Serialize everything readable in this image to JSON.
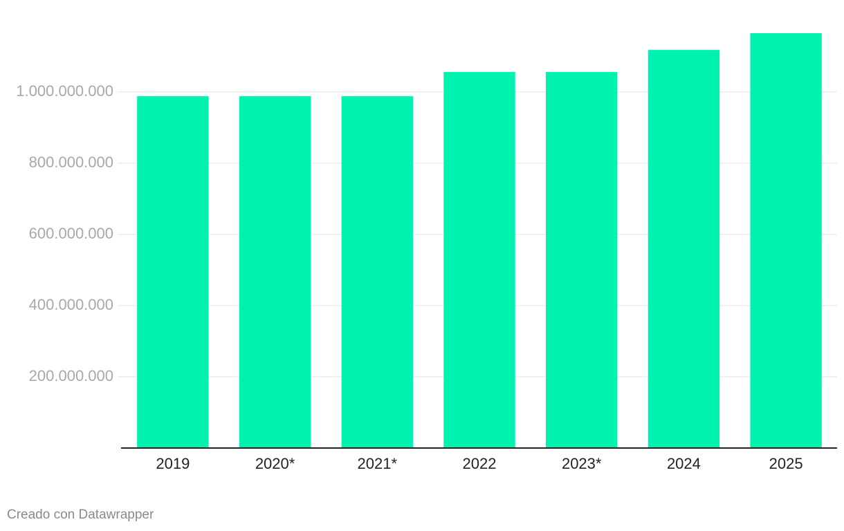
{
  "chart_data": {
    "type": "bar",
    "categories": [
      "2019",
      "2020*",
      "2021*",
      "2022",
      "2023*",
      "2024",
      "2025"
    ],
    "values": [
      988000000,
      988000000,
      988000000,
      1056000000,
      1056000000,
      1118000000,
      1165000000
    ],
    "color": "#00f2b0",
    "ylim": [
      0,
      1165000000
    ],
    "yticks": [
      {
        "value": 200000000,
        "label": "200.000.000"
      },
      {
        "value": 400000000,
        "label": "400.000.000"
      },
      {
        "value": 600000000,
        "label": "600.000.000"
      },
      {
        "value": 800000000,
        "label": "800.000.000"
      },
      {
        "value": 1000000000,
        "label": "1.000.000.000"
      }
    ],
    "grid": true,
    "credit": "Creado con Datawrapper"
  }
}
